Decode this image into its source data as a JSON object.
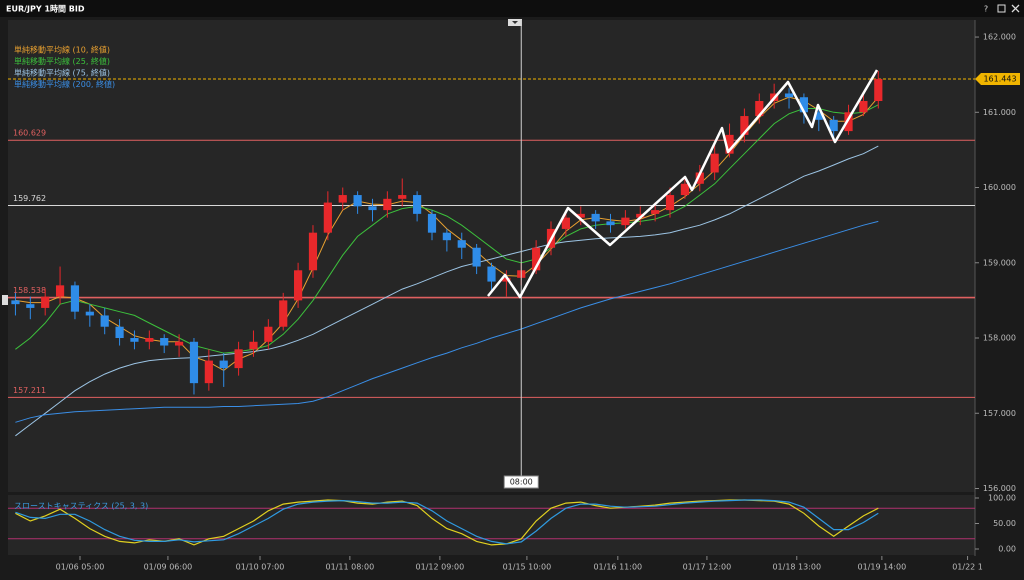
{
  "window": {
    "title": "EUR/JPY 1時間 BID",
    "help": "?"
  },
  "chart_data": [
    {
      "type": "candlestick",
      "up_color": "#e8282b",
      "down_color": "#2f8ce8",
      "xlim": [
        0,
        65
      ],
      "ylim": [
        155.98,
        162.2
      ],
      "yticks": [
        {
          "value": 162,
          "label": "162.000"
        },
        {
          "value": 161,
          "label": "161.000"
        },
        {
          "value": 160,
          "label": "160.000"
        },
        {
          "value": 159,
          "label": "159.000"
        },
        {
          "value": 158,
          "label": "158.000"
        },
        {
          "value": 157,
          "label": "157.000"
        },
        {
          "value": 156,
          "label": "156.000"
        }
      ],
      "candles": {
        "open": [
          158.5,
          158.45,
          158.4,
          158.55,
          158.7,
          158.35,
          158.3,
          158.15,
          158.0,
          157.95,
          158.0,
          157.9,
          157.95,
          157.4,
          157.7,
          157.6,
          157.85,
          157.95,
          158.15,
          158.5,
          158.9,
          159.4,
          159.8,
          159.9,
          159.75,
          159.7,
          159.85,
          159.9,
          159.65,
          159.4,
          159.3,
          159.2,
          158.95,
          158.75,
          158.8,
          158.9,
          159.2,
          159.45,
          159.6,
          159.65,
          159.55,
          159.5,
          159.6,
          159.65,
          159.7,
          159.9,
          160.05,
          160.2,
          160.45,
          160.7,
          160.95,
          161.15,
          161.25,
          161.2,
          161.0,
          160.9,
          160.75,
          161.0,
          161.15
        ],
        "high": [
          158.6,
          158.55,
          158.65,
          158.95,
          158.75,
          158.45,
          158.4,
          158.25,
          158.1,
          158.1,
          158.05,
          158.05,
          158.0,
          157.85,
          157.8,
          157.95,
          158.1,
          158.25,
          158.6,
          159.0,
          159.5,
          159.95,
          160.0,
          159.95,
          159.85,
          159.95,
          160.12,
          159.95,
          159.7,
          159.45,
          159.4,
          159.25,
          159.0,
          158.9,
          159.0,
          159.3,
          159.55,
          159.7,
          159.75,
          159.7,
          159.65,
          159.7,
          159.75,
          159.8,
          160.0,
          160.15,
          160.3,
          160.6,
          160.85,
          161.05,
          161.25,
          161.38,
          161.32,
          161.25,
          161.1,
          160.95,
          161.1,
          161.25,
          161.55
        ],
        "low": [
          158.3,
          158.25,
          158.3,
          158.45,
          158.25,
          158.15,
          158.05,
          157.9,
          157.85,
          157.85,
          157.8,
          157.75,
          157.25,
          157.3,
          157.35,
          157.5,
          157.75,
          157.85,
          158.1,
          158.4,
          158.8,
          159.3,
          159.7,
          159.65,
          159.55,
          159.6,
          159.75,
          159.55,
          159.3,
          159.15,
          159.05,
          158.85,
          158.6,
          158.55,
          158.7,
          158.85,
          159.1,
          159.35,
          159.5,
          159.45,
          159.4,
          159.45,
          159.5,
          159.55,
          159.6,
          159.85,
          159.95,
          160.1,
          160.4,
          160.6,
          160.85,
          161.05,
          161.05,
          160.85,
          160.75,
          160.62,
          160.7,
          160.95,
          161.05
        ],
        "close": [
          158.45,
          158.4,
          158.55,
          158.7,
          158.35,
          158.3,
          158.15,
          158.0,
          157.95,
          158.0,
          157.9,
          157.95,
          157.4,
          157.7,
          157.6,
          157.85,
          157.95,
          158.15,
          158.5,
          158.9,
          159.4,
          159.8,
          159.9,
          159.75,
          159.7,
          159.85,
          159.9,
          159.65,
          159.4,
          159.3,
          159.2,
          158.95,
          158.75,
          158.8,
          158.9,
          159.2,
          159.45,
          159.6,
          159.65,
          159.55,
          159.5,
          159.6,
          159.65,
          159.7,
          159.9,
          160.05,
          160.2,
          160.45,
          160.7,
          160.95,
          161.15,
          161.25,
          161.2,
          161.0,
          160.9,
          160.75,
          161.0,
          161.15,
          161.443
        ]
      },
      "series": [
        {
          "name": "単純移動平均線 (10, 終値)",
          "color": "#e8a030",
          "values": [
            158.5,
            158.47,
            158.47,
            158.55,
            158.53,
            158.45,
            158.27,
            158.15,
            158.03,
            157.98,
            157.95,
            157.95,
            157.75,
            157.68,
            157.57,
            157.72,
            157.8,
            157.98,
            158.2,
            158.52,
            158.93,
            159.37,
            159.7,
            159.82,
            159.78,
            159.77,
            159.82,
            159.8,
            159.65,
            159.45,
            159.3,
            159.15,
            158.97,
            158.83,
            158.82,
            158.97,
            159.18,
            159.42,
            159.57,
            159.6,
            159.57,
            159.55,
            159.58,
            159.65,
            159.75,
            159.88,
            160.05,
            160.23,
            160.45,
            160.7,
            160.93,
            161.12,
            161.2,
            161.15,
            161.03,
            160.88,
            160.88,
            160.97,
            161.2
          ]
        },
        {
          "name": "単純移動平均線 (25, 終値)",
          "color": "#3cc03c",
          "values": [
            157.85,
            158.0,
            158.2,
            158.45,
            158.5,
            158.45,
            158.4,
            158.35,
            158.3,
            158.2,
            158.1,
            158.0,
            157.9,
            157.85,
            157.8,
            157.82,
            157.85,
            157.9,
            158.05,
            158.25,
            158.5,
            158.8,
            159.1,
            159.35,
            159.5,
            159.65,
            159.72,
            159.75,
            159.7,
            159.62,
            159.5,
            159.35,
            159.2,
            159.05,
            159.0,
            159.05,
            159.2,
            159.35,
            159.45,
            159.5,
            159.52,
            159.53,
            159.55,
            159.58,
            159.65,
            159.75,
            159.9,
            160.05,
            160.25,
            160.45,
            160.65,
            160.85,
            160.98,
            161.05,
            161.05,
            161.0,
            160.98,
            161.0,
            161.1
          ]
        },
        {
          "name": "単純移動平均線 (75, 終値)",
          "color": "#9cc4e4",
          "values": [
            156.7,
            156.85,
            157.0,
            157.15,
            157.3,
            157.42,
            157.52,
            157.6,
            157.66,
            157.7,
            157.72,
            157.73,
            157.74,
            157.76,
            157.78,
            157.8,
            157.82,
            157.85,
            157.9,
            157.97,
            158.05,
            158.15,
            158.25,
            158.35,
            158.45,
            158.55,
            158.65,
            158.72,
            158.8,
            158.88,
            158.95,
            159.0,
            159.05,
            159.1,
            159.15,
            159.2,
            159.25,
            159.28,
            159.3,
            159.32,
            159.33,
            159.34,
            159.35,
            159.37,
            159.4,
            159.45,
            159.5,
            159.57,
            159.65,
            159.75,
            159.85,
            159.95,
            160.05,
            160.15,
            160.22,
            160.3,
            160.38,
            160.45,
            160.55
          ]
        },
        {
          "name": "単純移動平均線 (200, 終値)",
          "color": "#3a8ee6",
          "values": [
            156.88,
            156.94,
            156.98,
            157.0,
            157.02,
            157.03,
            157.04,
            157.05,
            157.06,
            157.07,
            157.08,
            157.08,
            157.08,
            157.08,
            157.09,
            157.09,
            157.1,
            157.11,
            157.12,
            157.13,
            157.16,
            157.22,
            157.3,
            157.38,
            157.46,
            157.53,
            157.6,
            157.67,
            157.74,
            157.8,
            157.87,
            157.93,
            158.0,
            158.06,
            158.12,
            158.19,
            158.26,
            158.33,
            158.4,
            158.46,
            158.52,
            158.57,
            158.62,
            158.67,
            158.72,
            158.78,
            158.84,
            158.9,
            158.96,
            159.02,
            159.08,
            159.14,
            159.2,
            159.26,
            159.32,
            159.38,
            159.44,
            159.5,
            159.55
          ]
        }
      ],
      "levels": [
        {
          "value": 160.629,
          "color": "#e06060"
        },
        {
          "value": 159.762,
          "color": "#d8d8d8"
        },
        {
          "value": 158.538,
          "color": "#e06060"
        },
        {
          "value": 157.211,
          "color": "#e06060"
        }
      ],
      "current_price": {
        "value": 161.443,
        "color": "#f0b400"
      },
      "crosshair": {
        "x": 34.5,
        "label": "08:00"
      }
    },
    {
      "type": "line",
      "title": "スローストキャスティクス (25, 3, 3)",
      "title_color": "#3a9be0",
      "xlim": [
        0,
        65
      ],
      "ylim": [
        0,
        100
      ],
      "yticks": [
        {
          "value": 100,
          "label": "100.00"
        },
        {
          "value": 50,
          "label": "50.00"
        },
        {
          "value": 0,
          "label": "0.00"
        }
      ],
      "xticks": [
        {
          "value": 4.84,
          "label": "01/06 05:00"
        },
        {
          "value": 10.75,
          "label": "01/09 06:00"
        },
        {
          "value": 16.94,
          "label": "01/10 07:00"
        },
        {
          "value": 22.98,
          "label": "01/11 08:00"
        },
        {
          "value": 29.03,
          "label": "01/12 09:00"
        },
        {
          "value": 34.88,
          "label": "01/15 10:00"
        },
        {
          "value": 40.99,
          "label": "01/16 11:00"
        },
        {
          "value": 46.98,
          "label": "01/17 12:00"
        },
        {
          "value": 53.02,
          "label": "01/18 13:00"
        },
        {
          "value": 58.74,
          "label": "01/19 14:00"
        },
        {
          "value": 64.5,
          "label": "01/22 1"
        }
      ],
      "levels": [
        80,
        20
      ],
      "level_color": "#b0306e",
      "series": [
        {
          "color": "#e0d020",
          "values": [
            70,
            55,
            65,
            78,
            60,
            40,
            25,
            15,
            12,
            18,
            15,
            20,
            8,
            20,
            25,
            40,
            55,
            75,
            88,
            92,
            94,
            96,
            95,
            90,
            88,
            92,
            94,
            85,
            60,
            40,
            30,
            15,
            8,
            10,
            20,
            55,
            80,
            90,
            92,
            85,
            80,
            82,
            84,
            86,
            90,
            92,
            94,
            95,
            96,
            96,
            95,
            94,
            88,
            70,
            45,
            25,
            45,
            65,
            80
          ]
        },
        {
          "color": "#2f9ae0",
          "values": [
            72,
            62,
            60,
            68,
            68,
            55,
            38,
            25,
            17,
            15,
            15,
            18,
            14,
            16,
            18,
            30,
            45,
            60,
            78,
            88,
            92,
            94,
            95,
            93,
            90,
            90,
            92,
            90,
            75,
            55,
            40,
            25,
            15,
            10,
            14,
            35,
            60,
            80,
            88,
            88,
            84,
            82,
            83,
            84,
            87,
            90,
            92,
            94,
            95,
            96,
            96,
            95,
            92,
            82,
            60,
            38,
            38,
            52,
            70
          ]
        }
      ]
    }
  ]
}
